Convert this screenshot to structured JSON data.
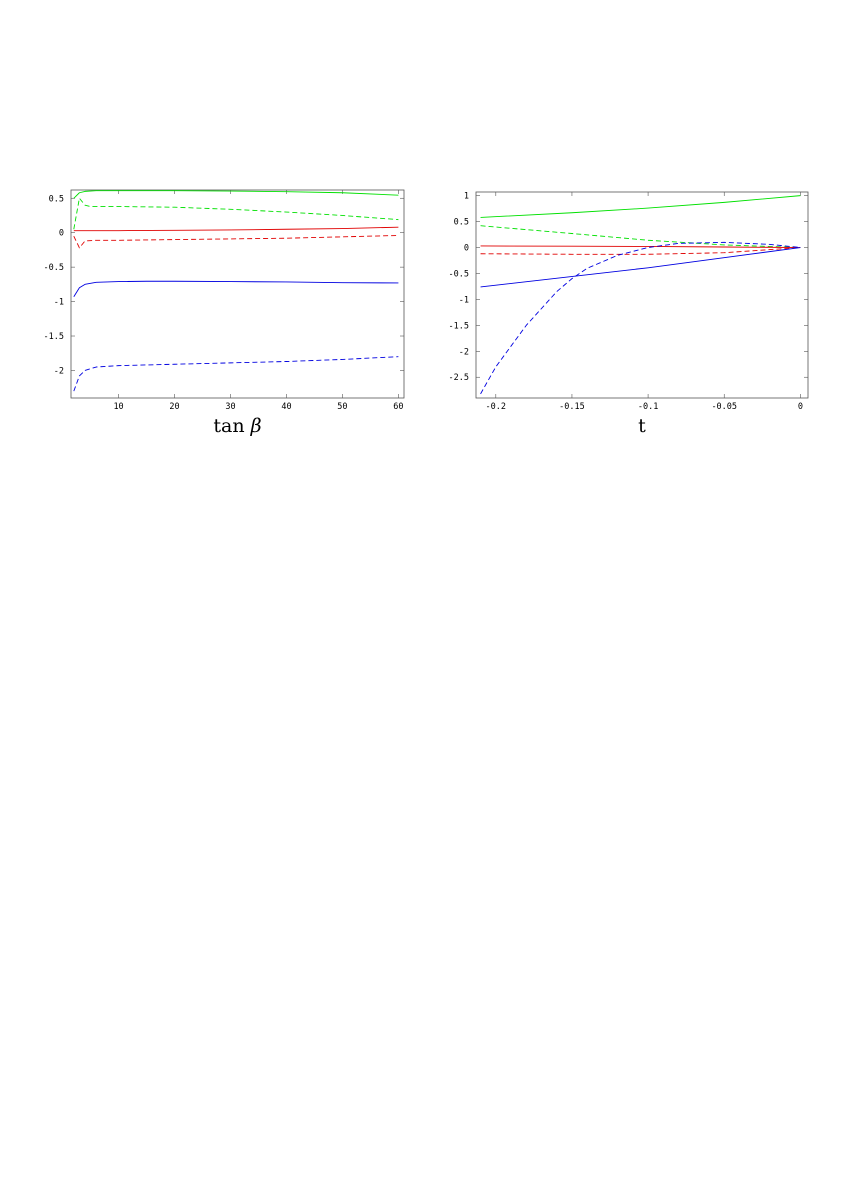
{
  "chart_data": [
    {
      "type": "line",
      "xlabel": "tan β",
      "xlabel_parts": {
        "fn": "tan",
        "var": "β"
      },
      "ylabel": "",
      "xlim": [
        1.5,
        61
      ],
      "ylim": [
        -2.4,
        0.62
      ],
      "xticks": [
        10,
        20,
        30,
        40,
        50,
        60
      ],
      "xtick_labels": [
        "10",
        "20",
        "30",
        "40",
        "50",
        "60"
      ],
      "yticks": [
        0.5,
        0,
        -0.5,
        -1,
        -1.5,
        -2
      ],
      "ytick_labels": [
        "0.5",
        "0",
        "-0.5",
        "-1",
        "-1.5",
        "-2"
      ],
      "grid": false,
      "series": [
        {
          "color": "#00e000",
          "dash": "solid",
          "x": [
            2,
            3,
            4,
            6,
            10,
            20,
            30,
            40,
            50,
            60
          ],
          "y": [
            0.5,
            0.58,
            0.6,
            0.61,
            0.61,
            0.61,
            0.605,
            0.595,
            0.58,
            0.545
          ]
        },
        {
          "color": "#00e000",
          "dash": "dashed",
          "x": [
            2,
            3,
            4,
            5,
            10,
            20,
            30,
            40,
            50,
            60
          ],
          "y": [
            0.05,
            0.5,
            0.4,
            0.38,
            0.38,
            0.37,
            0.34,
            0.3,
            0.25,
            0.19
          ]
        },
        {
          "color": "#e00000",
          "dash": "solid",
          "x": [
            2,
            5,
            10,
            20,
            30,
            40,
            50,
            60
          ],
          "y": [
            0.03,
            0.03,
            0.03,
            0.035,
            0.04,
            0.05,
            0.06,
            0.08
          ]
        },
        {
          "color": "#e00000",
          "dash": "dashed",
          "x": [
            2,
            3,
            4,
            6,
            10,
            20,
            30,
            40,
            50,
            60
          ],
          "y": [
            -0.05,
            -0.22,
            -0.12,
            -0.11,
            -0.11,
            -0.1,
            -0.09,
            -0.08,
            -0.06,
            -0.04
          ]
        },
        {
          "color": "#0000e0",
          "dash": "solid",
          "x": [
            2,
            3,
            4,
            6,
            10,
            15,
            20,
            30,
            40,
            50,
            60
          ],
          "y": [
            -0.93,
            -0.8,
            -0.75,
            -0.72,
            -0.71,
            -0.705,
            -0.705,
            -0.71,
            -0.715,
            -0.725,
            -0.73
          ]
        },
        {
          "color": "#0000e0",
          "dash": "dashed",
          "x": [
            2,
            3,
            4,
            6,
            10,
            20,
            30,
            40,
            50,
            60
          ],
          "y": [
            -2.3,
            -2.08,
            -2.0,
            -1.95,
            -1.93,
            -1.91,
            -1.89,
            -1.87,
            -1.84,
            -1.8
          ]
        }
      ]
    },
    {
      "type": "line",
      "xlabel": "t",
      "ylabel": "",
      "xlim": [
        -0.213,
        0.005
      ],
      "ylim": [
        -2.9,
        1.07
      ],
      "xticks": [
        -0.2,
        -0.15,
        -0.1,
        -0.05,
        0
      ],
      "xtick_labels": [
        "-0.2",
        "-0.15",
        "-0.1",
        "-0.05",
        "0"
      ],
      "yticks": [
        1,
        0.5,
        0,
        -0.5,
        -1,
        -1.5,
        -2,
        -2.5
      ],
      "ytick_labels": [
        "1",
        "0.5",
        "0",
        "-0.5",
        "-1",
        "-1.5",
        "-2",
        "-2.5"
      ],
      "grid": false,
      "series": [
        {
          "color": "#00e000",
          "dash": "solid",
          "x": [
            -0.21,
            -0.15,
            -0.1,
            -0.05,
            0
          ],
          "y": [
            0.58,
            0.67,
            0.76,
            0.87,
            1.0
          ]
        },
        {
          "color": "#00e000",
          "dash": "dashed",
          "x": [
            -0.21,
            -0.15,
            -0.1,
            -0.05,
            0
          ],
          "y": [
            0.42,
            0.27,
            0.14,
            0.05,
            0.0
          ]
        },
        {
          "color": "#e00000",
          "dash": "solid",
          "x": [
            -0.21,
            -0.15,
            -0.1,
            -0.05,
            0
          ],
          "y": [
            0.03,
            0.025,
            0.02,
            0.01,
            0.0
          ]
        },
        {
          "color": "#e00000",
          "dash": "dashed",
          "x": [
            -0.21,
            -0.15,
            -0.1,
            -0.05,
            0
          ],
          "y": [
            -0.12,
            -0.13,
            -0.13,
            -0.1,
            0.0
          ]
        },
        {
          "color": "#0000e0",
          "dash": "solid",
          "x": [
            -0.21,
            -0.1,
            0
          ],
          "y": [
            -0.76,
            -0.39,
            0.0
          ]
        },
        {
          "color": "#0000e0",
          "dash": "dashed",
          "x": [
            -0.21,
            -0.2,
            -0.18,
            -0.16,
            -0.15,
            -0.14,
            -0.12,
            -0.1,
            -0.08,
            -0.05,
            -0.02,
            0
          ],
          "y": [
            -2.82,
            -2.3,
            -1.5,
            -0.85,
            -0.6,
            -0.4,
            -0.15,
            0.0,
            0.08,
            0.1,
            0.06,
            0.0
          ]
        }
      ]
    }
  ]
}
